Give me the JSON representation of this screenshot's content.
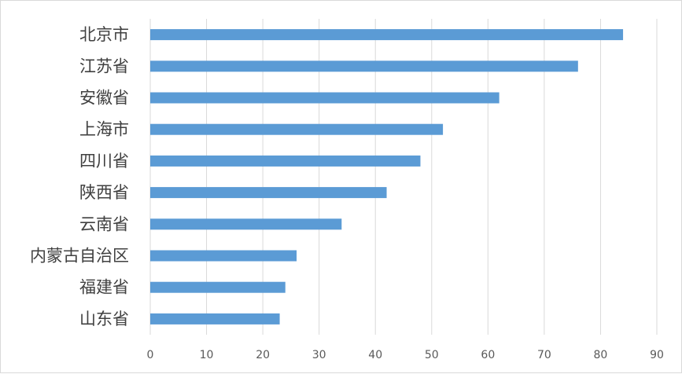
{
  "chart_data": {
    "type": "bar",
    "orientation": "horizontal",
    "categories": [
      "北京市",
      "江苏省",
      "安徽省",
      "上海市",
      "四川省",
      "陕西省",
      "云南省",
      "内蒙古自治区",
      "福建省",
      "山东省"
    ],
    "values": [
      84,
      76,
      62,
      52,
      48,
      42,
      34,
      26,
      24,
      23
    ],
    "xlim": [
      0,
      90
    ],
    "xticks": [
      "0",
      "10",
      "20",
      "30",
      "40",
      "50",
      "60",
      "70",
      "80",
      "90"
    ],
    "grid": "vertical",
    "bar_color": "#5b9bd5",
    "title": "",
    "xlabel": "",
    "ylabel": ""
  }
}
